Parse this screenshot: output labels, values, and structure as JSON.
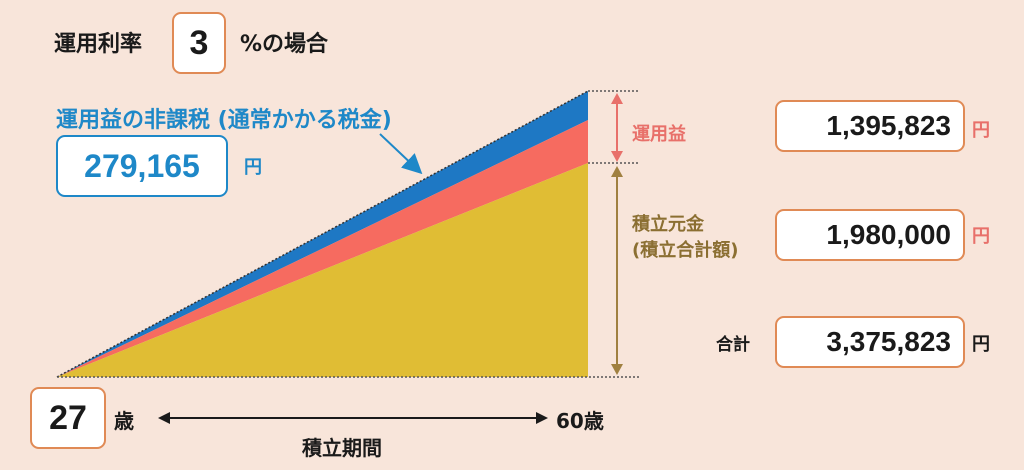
{
  "rate": {
    "label": "運用利率",
    "value": "3",
    "suffix": "%の場合"
  },
  "tax": {
    "title": "運用益の非課税 (通常かかる税金)",
    "value": "279,165",
    "unit": "円"
  },
  "gain": {
    "label": "運用益",
    "value": "1,395,823",
    "unit": "円"
  },
  "principal": {
    "label_line1": "積立元金",
    "label_line2": "(積立合計額)",
    "value": "1,980,000",
    "unit": "円"
  },
  "total": {
    "label": "合計",
    "value": "3,375,823",
    "unit": "円"
  },
  "age": {
    "start": "27",
    "unit": "歳",
    "end": "60歳",
    "period_label": "積立期間"
  },
  "colors": {
    "principal": "#e0bd34",
    "gain": "#f66b60",
    "tax": "#1e78c4",
    "box_border": "#e08a55",
    "background": "#f8e5da"
  }
}
